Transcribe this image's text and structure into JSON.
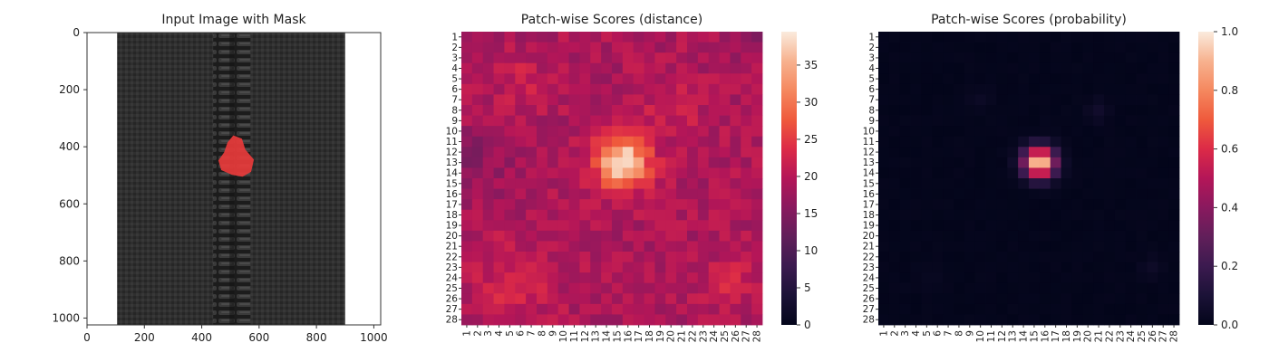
{
  "chart_data": [
    {
      "type": "image",
      "title": "Input Image with Mask",
      "xlim": [
        0,
        1024
      ],
      "ylim": [
        1024,
        0
      ],
      "xticks": [
        0,
        200,
        400,
        600,
        800,
        1000
      ],
      "yticks": [
        0,
        200,
        400,
        600,
        800,
        1000
      ],
      "image": {
        "content": "zipper photo",
        "fabric_left": 105,
        "fabric_right": 900,
        "teeth_left": 440,
        "teeth_right": 570,
        "colors": {
          "fabric": "#2e2e2e",
          "teeth": "#232323",
          "background": "#ffffff"
        }
      },
      "mask": {
        "color": "#e83b3b",
        "outline": [
          [
            510,
            360
          ],
          [
            540,
            372
          ],
          [
            552,
            410
          ],
          [
            582,
            445
          ],
          [
            572,
            488
          ],
          [
            542,
            505
          ],
          [
            505,
            498
          ],
          [
            468,
            482
          ],
          [
            458,
            448
          ],
          [
            478,
            420
          ],
          [
            490,
            385
          ]
        ]
      }
    },
    {
      "type": "heatmap",
      "title": "Patch-wise Scores (distance)",
      "rows": 28,
      "cols": 28,
      "tick_labels": [
        "1",
        "2",
        "3",
        "4",
        "5",
        "6",
        "7",
        "8",
        "9",
        "10",
        "11",
        "12",
        "13",
        "14",
        "15",
        "16",
        "17",
        "18",
        "19",
        "20",
        "21",
        "22",
        "23",
        "24",
        "25",
        "26",
        "27",
        "28"
      ],
      "colorbar": {
        "min": 0,
        "max": 39.5,
        "ticks": [
          0,
          5,
          10,
          15,
          20,
          25,
          30,
          35
        ]
      },
      "colormap": "rocket",
      "model": {
        "background": 19,
        "noise_amplitude": 2.5,
        "peak": {
          "row": 13,
          "col": 15.5,
          "value": 39.5,
          "sigma": 1.7
        },
        "warm_spots": [
          {
            "row": 24.5,
            "col": 5.5,
            "amp": 4,
            "sigma": 2.5
          },
          {
            "row": 24.5,
            "col": 25.5,
            "amp": 4,
            "sigma": 1.6
          },
          {
            "row": 5,
            "col": 6,
            "amp": 2.5,
            "sigma": 1.8
          },
          {
            "row": 8,
            "col": 20,
            "amp": 2.5,
            "sigma": 2.2
          }
        ],
        "cool_spots": [
          {
            "row": 13,
            "col": 2,
            "amp": 3,
            "sigma": 2.5
          },
          {
            "row": 1,
            "col": 27,
            "amp": 3,
            "sigma": 1.5
          }
        ]
      }
    },
    {
      "type": "heatmap",
      "title": "Patch-wise Scores (probability)",
      "rows": 28,
      "cols": 28,
      "tick_labels": [
        "1",
        "2",
        "3",
        "4",
        "5",
        "6",
        "7",
        "8",
        "9",
        "10",
        "11",
        "12",
        "13",
        "14",
        "15",
        "16",
        "17",
        "18",
        "19",
        "20",
        "21",
        "22",
        "23",
        "24",
        "25",
        "26",
        "27",
        "28"
      ],
      "colorbar": {
        "min": 0.0,
        "max": 1.0,
        "ticks": [
          "0.0",
          "0.2",
          "0.4",
          "0.6",
          "0.8",
          "1.0"
        ]
      },
      "colormap": "rocket",
      "model": {
        "peak": {
          "row": 13,
          "col": 15.5,
          "value": 1.0,
          "sigma": 1.0
        },
        "faint_spots": [
          {
            "row": 8,
            "col": 21,
            "amp": 0.05
          },
          {
            "row": 23,
            "col": 26,
            "amp": 0.04
          },
          {
            "row": 7,
            "col": 10,
            "amp": 0.03
          },
          {
            "row": 24,
            "col": 5,
            "amp": 0.02
          }
        ]
      }
    }
  ]
}
